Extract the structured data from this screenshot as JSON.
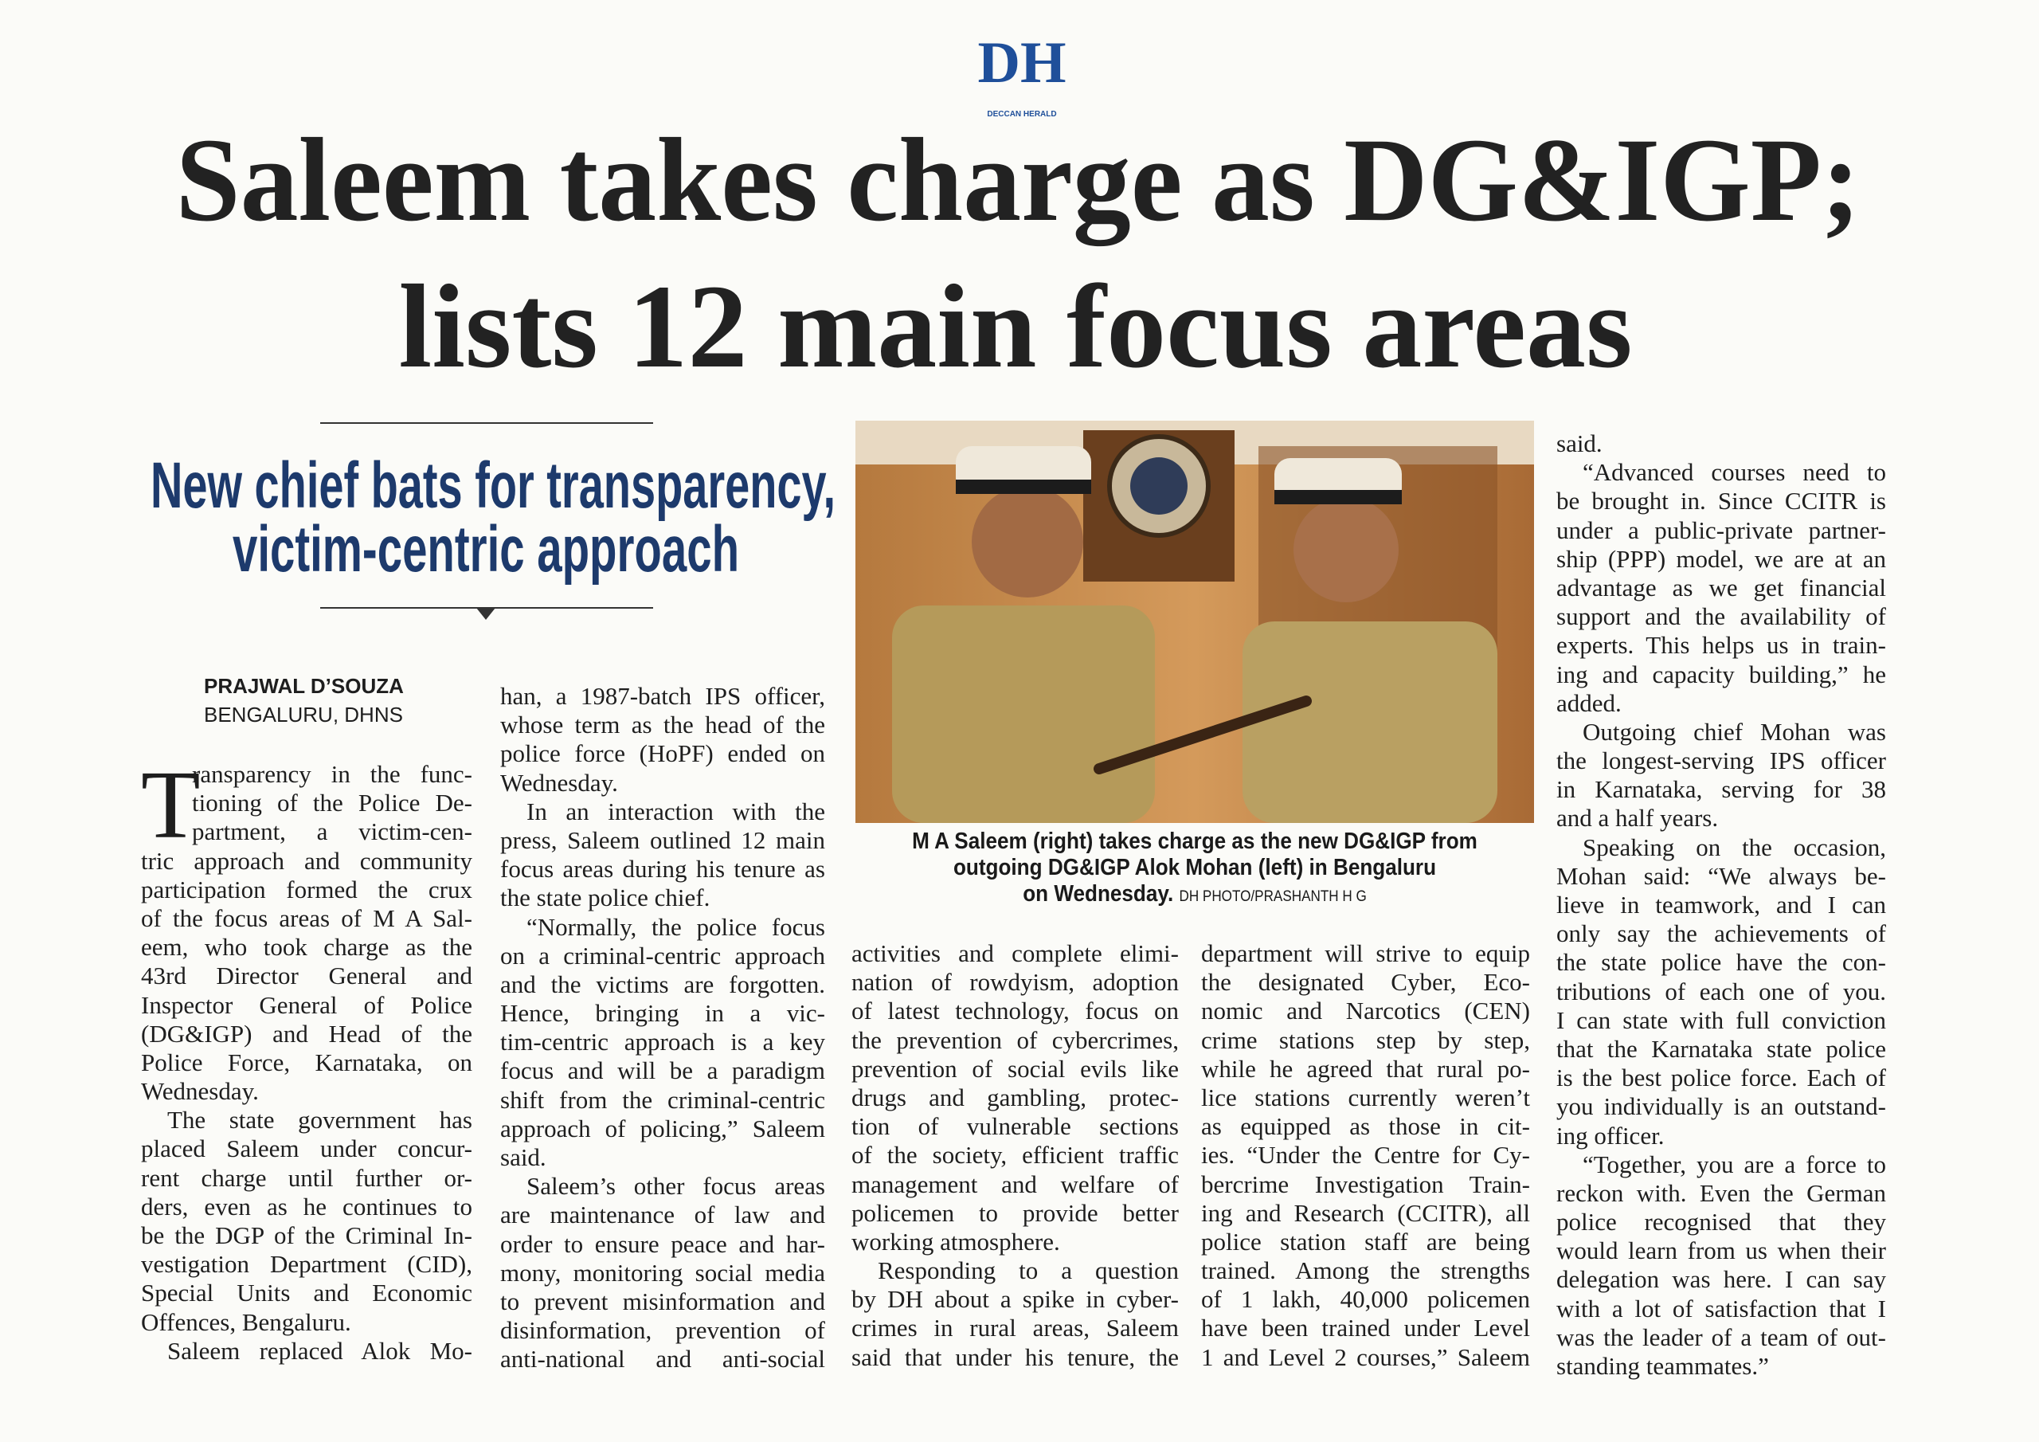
{
  "masthead": {
    "logo": "DH",
    "name": "DECCAN HERALD"
  },
  "headline": {
    "lines": [
      "Saleem takes charge as DG&IGP;",
      "lists 12 main focus areas"
    ]
  },
  "subheadline": {
    "lines": [
      "New chief bats for transparency,",
      "victim-centric approach"
    ]
  },
  "byline": {
    "author": "PRAJWAL D’SOUZA",
    "dateline": "BENGALURU, DHNS"
  },
  "photo": {
    "caption": {
      "lines": [
        "M A Saleem (right) takes charge as the new DG&IGP from",
        "outgoing DG&IGP Alok Mohan (left) in Bengaluru",
        "on Wednesday."
      ],
      "credit": "DH PHOTO/PRASHANTH H G"
    }
  },
  "article": {
    "drop_cap": "T",
    "columns": [
      {
        "paragraphs": [
          [
            "ransparency in the func-",
            "tioning of the Police De-",
            "partment, a victim-cen-",
            "tric approach and community",
            "participation formed the crux",
            "of the focus areas of M A Sal-",
            "eem, who took charge as the",
            "43rd Director General and",
            "Inspector General of Police",
            "(DG&IGP) and Head of the",
            "Police Force, Karnataka, on",
            "Wednesday."
          ],
          [
            "The state government has",
            "placed Saleem under concur-",
            "rent charge until further or-",
            "ders, even as he continues to",
            "be the DGP of the Criminal In-",
            "vestigation Department (CID),",
            "Special Units and Economic",
            "Offences, Bengaluru."
          ],
          [
            "Saleem replaced Alok Mo-"
          ]
        ]
      },
      {
        "paragraphs": [
          [
            "han, a 1987-batch IPS officer,",
            "whose term as the head of the",
            "police force (HoPF) ended on",
            "Wednesday."
          ],
          [
            "In an interaction with the",
            "press, Saleem outlined 12 main",
            "focus areas during his tenure as",
            "the state police chief."
          ],
          [
            "“Normally, the police focus",
            "on a criminal-centric approach",
            "and the victims are forgotten.",
            "Hence, bringing in a vic-",
            "tim-centric approach is a key",
            "focus and will be a paradigm",
            "shift from the criminal-centric",
            "approach of policing,” Saleem",
            "said."
          ],
          [
            "Saleem’s other focus areas",
            "are maintenance of law and",
            "order to ensure peace and har-",
            "mony, monitoring social media",
            "to prevent misinformation and",
            "disinformation, prevention of",
            "anti-national and anti-social"
          ]
        ]
      },
      {
        "paragraphs": [
          [
            "activities and complete elimi-",
            "nation of rowdyism, adoption",
            "of latest technology, focus on",
            "the prevention of cybercrimes,",
            "prevention of social evils like",
            "drugs and gambling, protec-",
            "tion of vulnerable sections",
            "of the society, efficient traffic",
            "management and welfare of",
            "policemen to provide better",
            "working atmosphere."
          ],
          [
            "Responding to a question",
            "by DH about a spike in cyber-",
            "crimes in rural areas, Saleem",
            "said that under his tenure, the"
          ]
        ]
      },
      {
        "paragraphs": [
          [
            "department will strive to equip",
            "the designated Cyber, Eco-",
            "nomic and Narcotics (CEN)",
            "crime stations step by step,",
            "while he agreed that rural po-",
            "lice stations currently weren’t",
            "as equipped as those in cit-",
            "ies. “Under the Centre for Cy-",
            "bercrime Investigation Train-",
            "ing and Research (CCITR), all",
            "police station staff are being",
            "trained. Among the strengths",
            "of 1 lakh, 40,000 policemen",
            "have been trained under Level",
            "1 and Level 2 courses,” Saleem"
          ]
        ]
      },
      {
        "paragraphs": [
          [
            "said."
          ],
          [
            "“Advanced courses need to",
            "be brought in. Since CCITR is",
            "under a public-private partner-",
            "ship (PPP) model, we are at an",
            "advantage as we get financial",
            "support and the availability of",
            "experts. This helps us in train-",
            "ing and capacity building,” he",
            "added."
          ],
          [
            "Outgoing chief Mohan was",
            "the longest-serving IPS officer",
            "in Karnataka, serving for 38",
            "and a half years."
          ],
          [
            "Speaking on the occasion,",
            "Mohan said: “We always be-",
            "lieve in teamwork, and I can",
            "only say the achievements of",
            "the state police have the con-",
            "tributions of each one of you.",
            "I can state with full conviction",
            "that the Karnataka state police",
            "is the best police force. Each of",
            "you individually is an outstand-",
            "ing officer."
          ],
          [
            "“Together, you are a force to",
            "reckon with. Even the German",
            "police recognised that they",
            "would learn from us when their",
            "delegation was here. I can say",
            "with a lot of satisfaction that I",
            "was the leader of a team of out-",
            "standing teammates.”"
          ]
        ]
      }
    ]
  }
}
